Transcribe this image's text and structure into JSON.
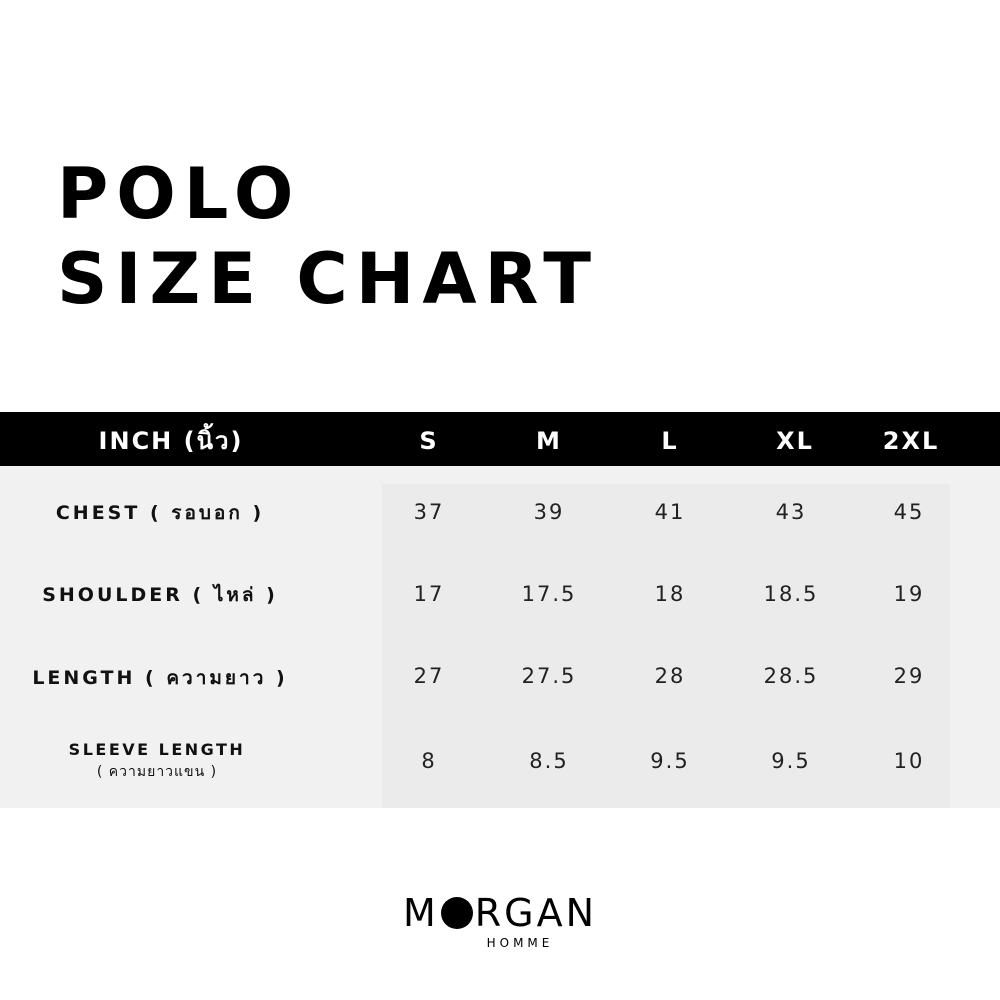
{
  "title": {
    "line1": "POLO",
    "line2": "SIZE CHART"
  },
  "table": {
    "unit_header": "INCH (นิ้ว)",
    "sizes": [
      "S",
      "M",
      "L",
      "XL",
      "2XL"
    ],
    "rows": [
      {
        "label": "CHEST ( รอบอก )",
        "sublabel": "",
        "values": [
          "37",
          "39",
          "41",
          "43",
          "45"
        ]
      },
      {
        "label": "SHOULDER ( ไหล่ )",
        "sublabel": "",
        "values": [
          "17",
          "17.5",
          "18",
          "18.5",
          "19"
        ]
      },
      {
        "label": "LENGTH ( ความยาว )",
        "sublabel": "",
        "values": [
          "27",
          "27.5",
          "28",
          "28.5",
          "29"
        ]
      },
      {
        "label": "SLEEVE LENGTH",
        "sublabel": "( ความยาวแขน )",
        "values": [
          "8",
          "8.5",
          "9.5",
          "9.5",
          "10"
        ]
      }
    ]
  },
  "brand": {
    "name_left": "M",
    "name_right": "RGAN",
    "tagline": "HOMME"
  },
  "colors": {
    "header_bg": "#000000",
    "table_bg": "#f1f1f1",
    "values_panel_bg": "#ebebeb"
  }
}
